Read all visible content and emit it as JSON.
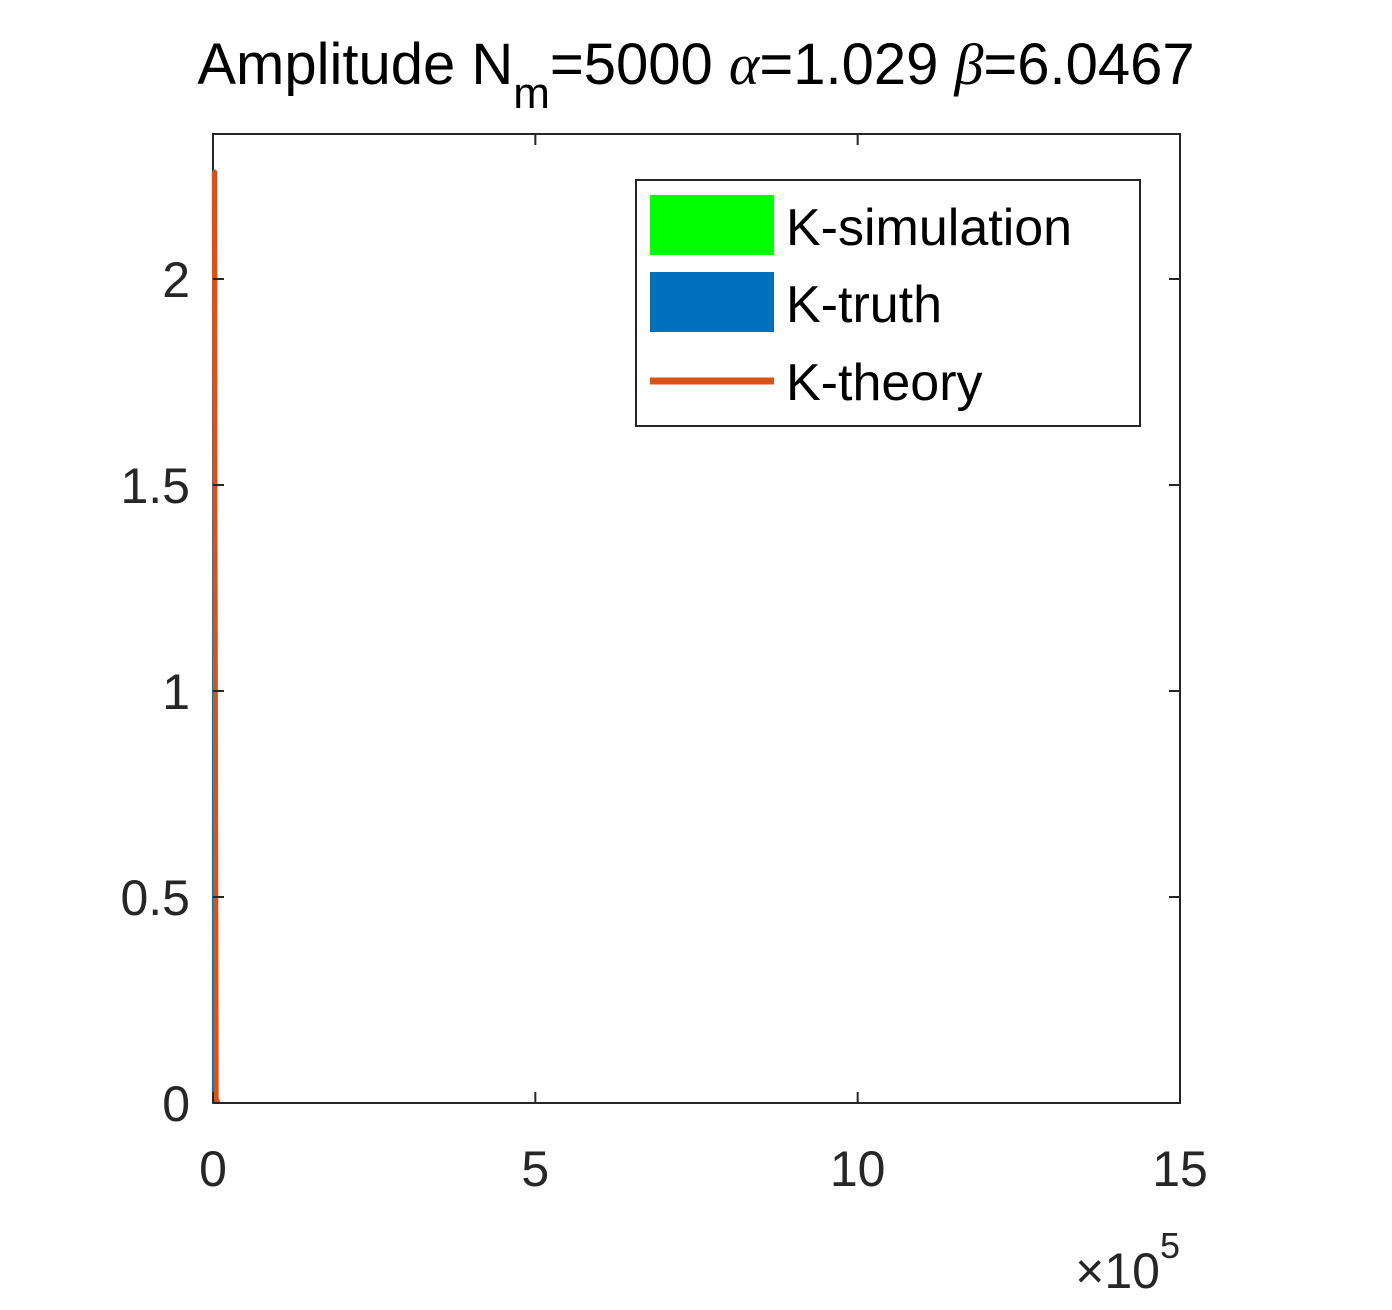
{
  "chart_data": {
    "type": "line",
    "title": {
      "prefix": "Amplitude N",
      "subscript": "m",
      "part1": "=5000 ",
      "alpha_symbol": "α",
      "part2": "=1.029 ",
      "beta_symbol": "β",
      "part3": "=6.0467"
    },
    "xlabel": "",
    "ylabel": "",
    "xlim": [
      0,
      15
    ],
    "ylim": [
      0,
      2.25
    ],
    "x_exponent": {
      "times": "×",
      "base": "10",
      "power": "5"
    },
    "xticks": [
      0,
      5,
      10,
      15
    ],
    "xtick_labels": [
      "0",
      "5",
      "10",
      "15"
    ],
    "yticks": [
      0,
      0.5,
      1,
      1.5,
      2
    ],
    "ytick_labels": [
      "0",
      "0.5",
      "1",
      "1.5",
      "2"
    ],
    "grid": false,
    "legend_position": "top-right",
    "series": [
      {
        "name": "K-simulation",
        "kind": "area",
        "color": "#00FF00",
        "x": [
          0,
          0.05,
          0.05,
          0
        ],
        "y": [
          0,
          0,
          2.26,
          2.26
        ]
      },
      {
        "name": "K-truth",
        "kind": "area",
        "color": "#0072BD",
        "x": [
          0,
          0.05,
          0.05,
          0
        ],
        "y": [
          0,
          0,
          2.26,
          2.26
        ]
      },
      {
        "name": "K-theory",
        "kind": "line",
        "color": "#D95319",
        "x": [
          0,
          0.02,
          0.05,
          0.08
        ],
        "y": [
          2.26,
          2.26,
          0.01,
          0
        ]
      }
    ]
  }
}
